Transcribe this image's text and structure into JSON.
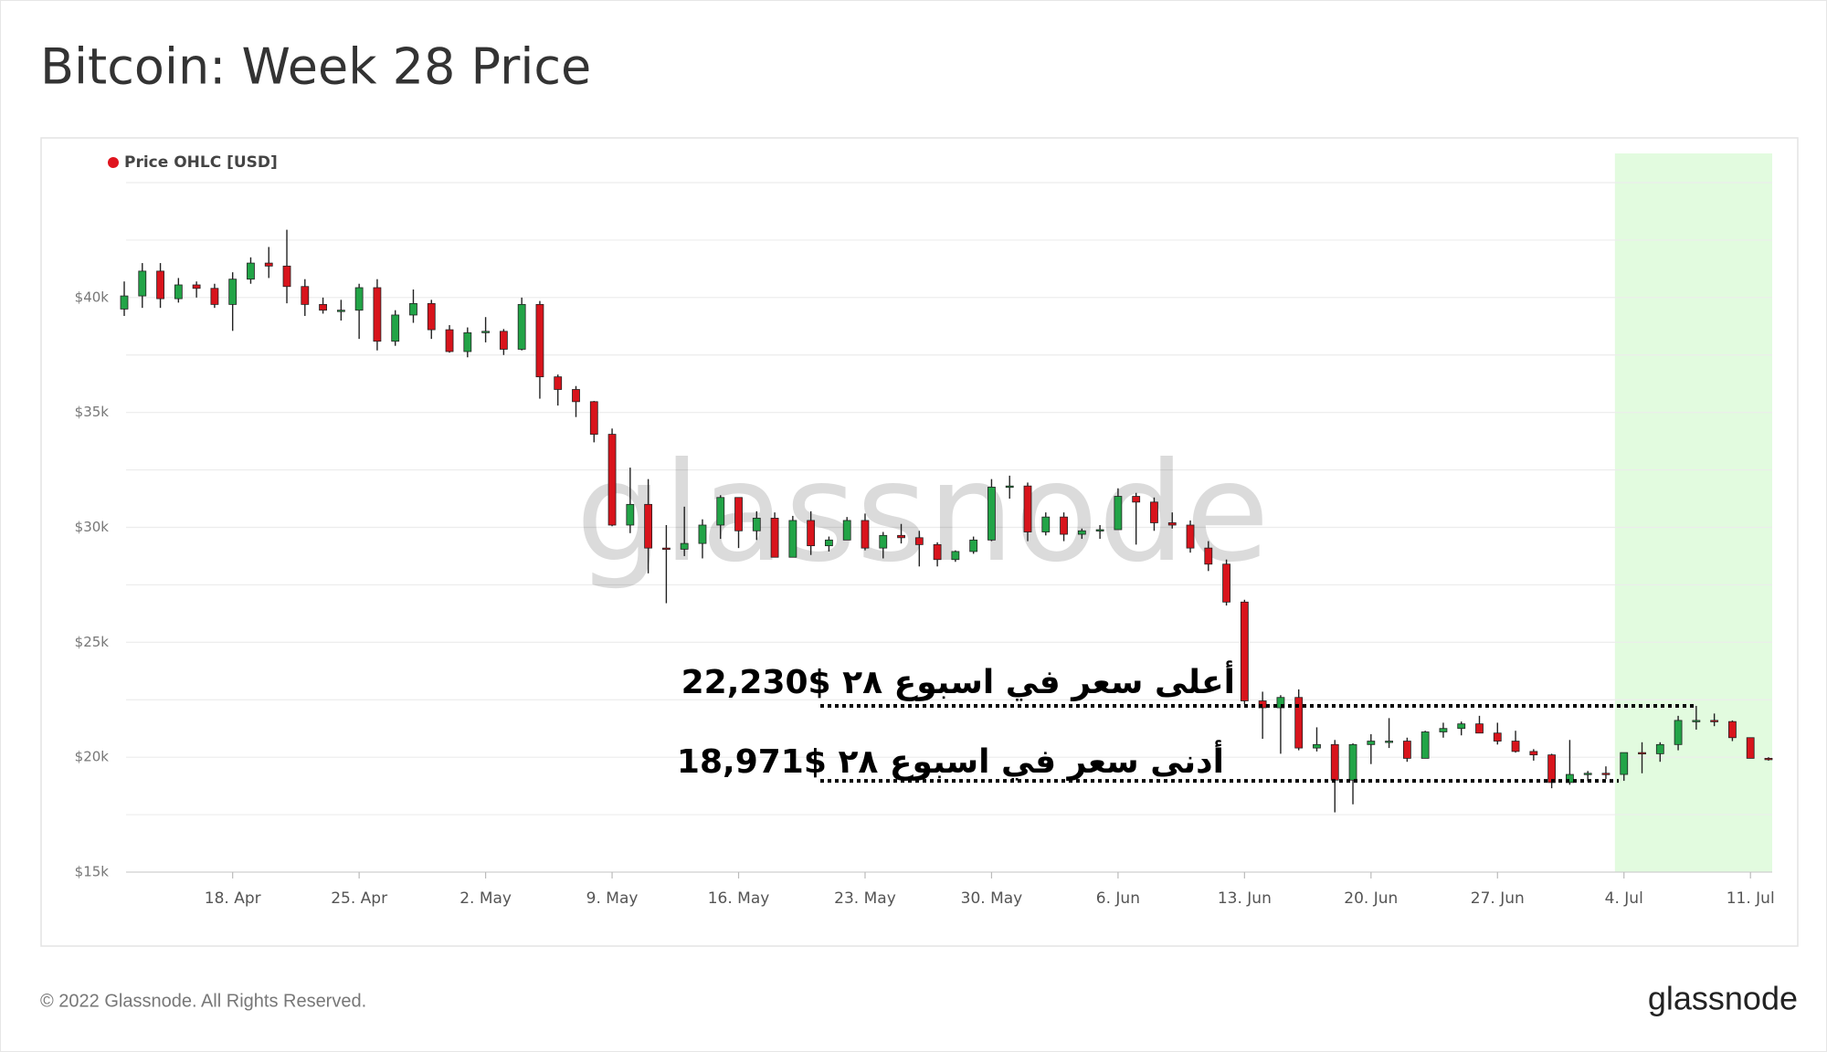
{
  "chart_data": {
    "type": "candlestick",
    "title": "Bitcoin: Week 28 Price",
    "x": [
      "12. Apr",
      "13. Apr",
      "14. Apr",
      "15. Apr",
      "16. Apr",
      "17. Apr",
      "18. Apr",
      "19. Apr",
      "20. Apr",
      "21. Apr",
      "22. Apr",
      "23. Apr",
      "24. Apr",
      "25. Apr",
      "26. Apr",
      "27. Apr",
      "28. Apr",
      "29. Apr",
      "30. Apr",
      "1. May",
      "2. May",
      "3. May",
      "4. May",
      "5. May",
      "6. May",
      "7. May",
      "8. May",
      "9. May",
      "10. May",
      "11. May",
      "12. May",
      "13. May",
      "14. May",
      "15. May",
      "16. May",
      "17. May",
      "18. May",
      "19. May",
      "20. May",
      "21. May",
      "22. May",
      "23. May",
      "24. May",
      "25. May",
      "26. May",
      "27. May",
      "28. May",
      "29. May",
      "30. May",
      "31. May",
      "1. Jun",
      "2. Jun",
      "3. Jun",
      "4. Jun",
      "5. Jun",
      "6. Jun",
      "7. Jun",
      "8. Jun",
      "9. Jun",
      "10. Jun",
      "11. Jun",
      "12. Jun",
      "13. Jun",
      "14. Jun",
      "15. Jun",
      "16. Jun",
      "17. Jun",
      "18. Jun",
      "19. Jun",
      "20. Jun",
      "21. Jun",
      "22. Jun",
      "23. Jun",
      "24. Jun",
      "25. Jun",
      "26. Jun",
      "27. Jun",
      "28. Jun",
      "29. Jun",
      "30. Jun",
      "1. Jul",
      "2. Jul",
      "3. Jul",
      "4. Jul",
      "5. Jul",
      "6. Jul",
      "7. Jul",
      "8. Jul",
      "9. Jul",
      "10. Jul",
      "11. Jul",
      "12. Jul"
    ],
    "series": [
      {
        "name": "Price OHLC [USD]",
        "color": "#e0141e",
        "open": [
          39500,
          40070,
          41150,
          39950,
          40550,
          40400,
          39700,
          40800,
          41500,
          41370,
          40480,
          39700,
          39450,
          39450,
          40430,
          38100,
          39240,
          39740,
          38600,
          37650,
          38470,
          38530,
          37750,
          39700,
          36550,
          36000,
          35470,
          34050,
          30100,
          31000,
          29100,
          29050,
          29300,
          30100,
          31300,
          29850,
          30400,
          28700,
          30300,
          29200,
          29450,
          30300,
          29100,
          29650,
          29550,
          29250,
          28600,
          28950,
          29450,
          31750,
          31800,
          29800,
          30450,
          29700,
          29850,
          29900,
          31350,
          31100,
          30200,
          30100,
          29100,
          28400,
          26750,
          22450,
          22150,
          22600,
          20400,
          20550,
          19000,
          20550,
          20700,
          20700,
          19950,
          21100,
          21250,
          21450,
          21050,
          20700,
          20250,
          20100,
          18900,
          19250,
          19300,
          19250,
          20200,
          20150,
          20550,
          21600,
          21600,
          21550,
          20850,
          19950
        ],
        "high": [
          40700,
          41500,
          41500,
          40850,
          40700,
          40600,
          41100,
          41750,
          42200,
          42950,
          40800,
          40000,
          39900,
          40600,
          40800,
          39450,
          40350,
          39900,
          38800,
          38700,
          39150,
          38630,
          40000,
          39850,
          36650,
          36150,
          35500,
          34300,
          32600,
          32100,
          30100,
          30900,
          30350,
          31400,
          31300,
          30700,
          30650,
          30500,
          30700,
          29600,
          30450,
          30600,
          29800,
          30150,
          29850,
          29350,
          29000,
          29600,
          32100,
          32250,
          31950,
          30650,
          30650,
          29950,
          30100,
          31700,
          31500,
          31300,
          30650,
          30300,
          29400,
          28600,
          26850,
          22850,
          22700,
          22950,
          21300,
          20750,
          20600,
          21000,
          21700,
          20850,
          21150,
          21500,
          21550,
          21800,
          21500,
          21150,
          20350,
          20150,
          20750,
          19400,
          19600,
          20200,
          20650,
          20650,
          21800,
          22230,
          21900,
          21600,
          20850,
          20000
        ],
        "low": [
          39200,
          39550,
          39550,
          39780,
          40000,
          39550,
          38550,
          40600,
          40850,
          39750,
          39200,
          39300,
          39000,
          38200,
          37700,
          37900,
          38900,
          38200,
          37600,
          37400,
          38050,
          37500,
          37700,
          35600,
          35300,
          34800,
          33700,
          30050,
          29750,
          28000,
          26700,
          28750,
          28650,
          29500,
          29100,
          29450,
          28700,
          28700,
          28800,
          28950,
          29450,
          29000,
          28650,
          29300,
          28300,
          28300,
          28500,
          28850,
          29400,
          31250,
          29400,
          29650,
          29400,
          29500,
          29500,
          29900,
          29250,
          29850,
          29950,
          28900,
          28100,
          26600,
          22300,
          20800,
          20150,
          20300,
          20250,
          17600,
          17950,
          19700,
          20400,
          19800,
          19950,
          20850,
          20950,
          21050,
          20550,
          20200,
          19850,
          18650,
          18800,
          18950,
          19050,
          18971,
          19300,
          19800,
          20300,
          21200,
          21350,
          20700,
          19950,
          19850
        ],
        "close": [
          40070,
          41150,
          39950,
          40550,
          40400,
          39700,
          40800,
          41500,
          41370,
          40480,
          39700,
          39450,
          39450,
          40430,
          38100,
          39240,
          39740,
          38600,
          37650,
          38470,
          38530,
          37750,
          39700,
          36550,
          36000,
          35470,
          34050,
          30100,
          31000,
          29100,
          29050,
          29300,
          30100,
          31300,
          29850,
          30400,
          28700,
          30300,
          29200,
          29450,
          30300,
          29100,
          29650,
          29550,
          29250,
          28600,
          28950,
          29450,
          31750,
          31800,
          29800,
          30450,
          29700,
          29850,
          29900,
          31350,
          31100,
          30200,
          30100,
          29100,
          28400,
          26750,
          22450,
          22150,
          22600,
          20400,
          20550,
          19000,
          20550,
          20700,
          20700,
          19950,
          21100,
          21250,
          21450,
          21050,
          20700,
          20250,
          20100,
          18900,
          19250,
          19300,
          19250,
          20200,
          20150,
          20550,
          21600,
          21600,
          21550,
          20850,
          19950,
          19900
        ]
      }
    ],
    "up_color": "#22a447",
    "down_color": "#d8141c",
    "ylim": [
      15000,
      45000
    ],
    "yticks": [
      {
        "value": 15000,
        "label": "$15k"
      },
      {
        "value": 20000,
        "label": "$20k"
      },
      {
        "value": 25000,
        "label": "$25k"
      },
      {
        "value": 30000,
        "label": "$30k"
      },
      {
        "value": 35000,
        "label": "$35k"
      },
      {
        "value": 40000,
        "label": "$40k"
      }
    ],
    "minor_yticks": [
      17500,
      22500,
      27500,
      32500,
      37500,
      42500,
      45000
    ],
    "xticks": [
      "18. Apr",
      "25. Apr",
      "2. May",
      "9. May",
      "16. May",
      "23. May",
      "30. May",
      "6. Jun",
      "13. Jun",
      "20. Jun",
      "27. Jun",
      "4. Jul",
      "11. Jul"
    ],
    "grid": true,
    "highlight": {
      "from": "4. Jul",
      "to": "12. Jul",
      "color": "#e2fbdf"
    },
    "annotations": [
      {
        "text": "أعلى سعر في اسبوع ٢٨ $22,230",
        "value": 22230
      },
      {
        "text": "أدنى سعر في اسبوع ٢٨ $18,971",
        "value": 18971
      }
    ],
    "watermark": "glassnode",
    "footer": "© 2022 Glassnode. All Rights Reserved.",
    "logo": "glassnode"
  }
}
